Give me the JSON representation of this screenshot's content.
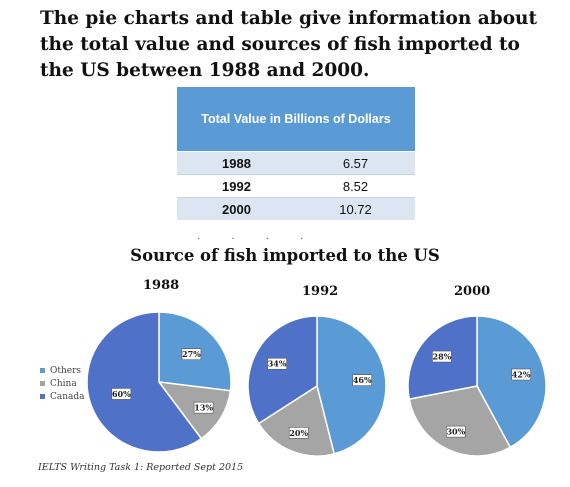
{
  "heading": "The pie charts and table give information about the total value and sources of fish imported to the US between 1988 and 2000.",
  "table": {
    "header": "Total Value in Billions of Dollars",
    "rows": [
      {
        "year": "1988",
        "value": "6.57"
      },
      {
        "year": "1992",
        "value": "8.52"
      },
      {
        "year": "2000",
        "value": "10.72"
      }
    ]
  },
  "colors": {
    "Canada": "#4f72c8",
    "China": "#a5a5a5",
    "Others": "#5b9bd5"
  },
  "footer": "IELTS Writing Task 1: Reported Sept 2015",
  "chart_data": {
    "type": "pie",
    "title": "Source of fish imported to the US",
    "legend": [
      "Others",
      "China",
      "Canada"
    ],
    "legend_position": "left",
    "pies": [
      {
        "year": "1988",
        "slices": [
          {
            "name": "Others",
            "value": 27,
            "label": "27%"
          },
          {
            "name": "China",
            "value": 13,
            "label": "13%"
          },
          {
            "name": "Canada",
            "value": 60,
            "label": "60%"
          }
        ]
      },
      {
        "year": "1992",
        "slices": [
          {
            "name": "Others",
            "value": 46,
            "label": "46%"
          },
          {
            "name": "China",
            "value": 20,
            "label": "20%"
          },
          {
            "name": "Canada",
            "value": 34,
            "label": "34%"
          }
        ]
      },
      {
        "year": "2000",
        "slices": [
          {
            "name": "Others",
            "value": 42,
            "label": "42%"
          },
          {
            "name": "China",
            "value": 30,
            "label": "30%"
          },
          {
            "name": "Canada",
            "value": 28,
            "label": "28%"
          }
        ]
      }
    ]
  }
}
